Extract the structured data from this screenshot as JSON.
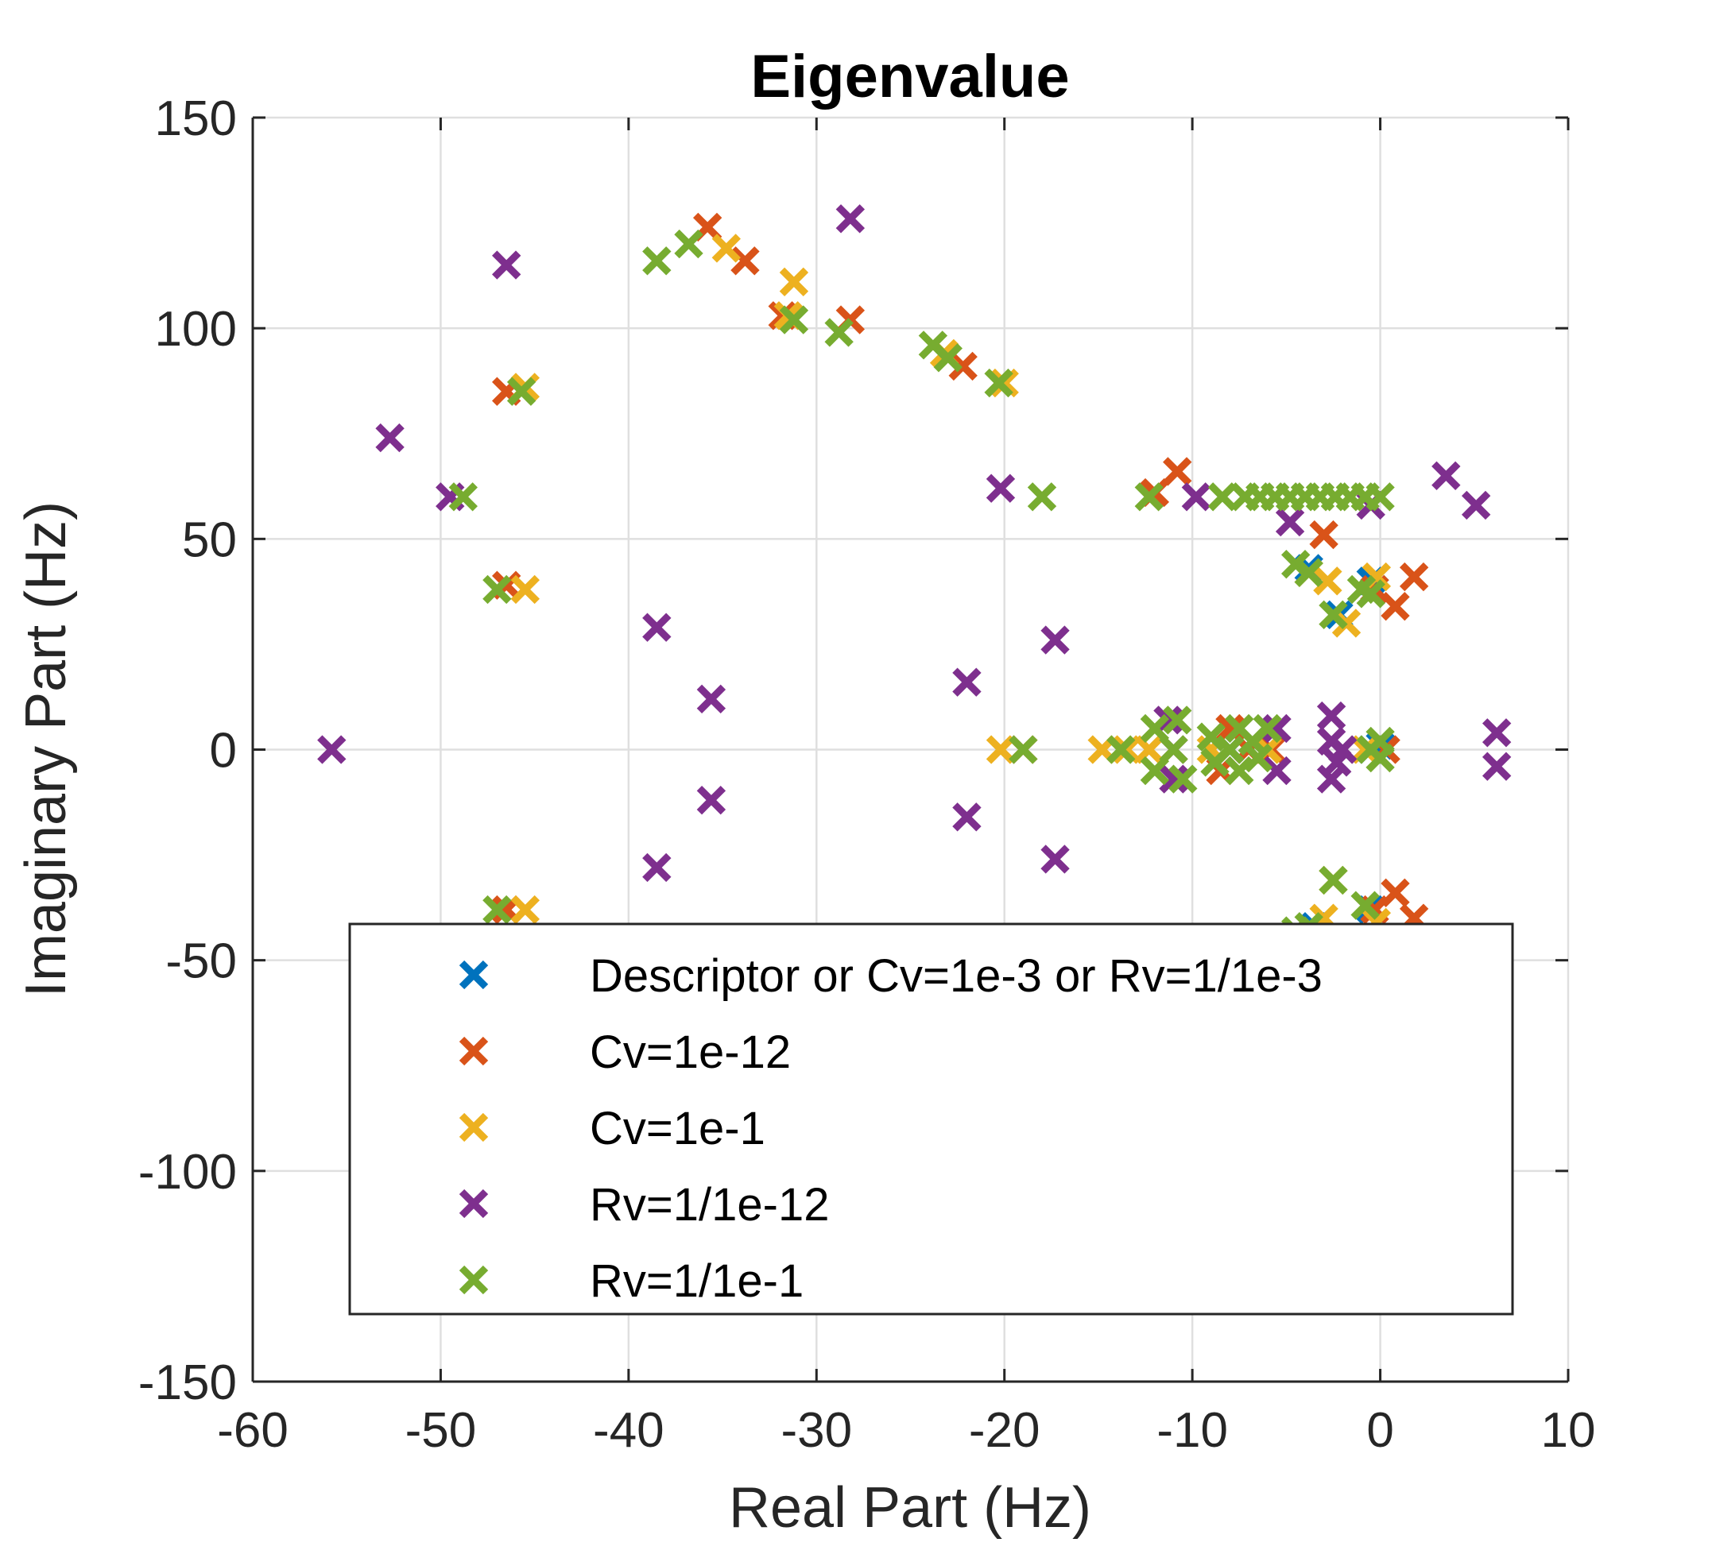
{
  "chart_data": {
    "type": "scatter",
    "title": "Eigenvalue",
    "xlabel": "Real Part (Hz)",
    "ylabel": "Imaginary Part (Hz)",
    "xlim": [
      -60,
      10
    ],
    "ylim": [
      -150,
      150
    ],
    "xticks": [
      -60,
      -50,
      -40,
      -30,
      -20,
      -10,
      0,
      10
    ],
    "yticks": [
      -150,
      -100,
      -50,
      0,
      50,
      100,
      150
    ],
    "xtick_labels": [
      "-60",
      "-50",
      "-40",
      "-30",
      "-20",
      "-10",
      "0",
      "10"
    ],
    "ytick_labels": [
      "-150",
      "-100",
      "-50",
      "0",
      "50",
      "100",
      "150"
    ],
    "grid": true,
    "legend_position": "bottom-center inside",
    "marker": "x",
    "series": [
      {
        "name": "Descriptor or Cv=1e-3 or Rv=1/1e-3",
        "color": "#0072BD",
        "points": [
          [
            -0.5,
            40
          ],
          [
            -0.3,
            38
          ],
          [
            -3.8,
            43
          ],
          [
            -2.2,
            32
          ],
          [
            -0.5,
            0
          ],
          [
            0.0,
            1
          ],
          [
            -0.5,
            -38
          ],
          [
            -3.5,
            -42
          ],
          [
            -8,
            0
          ],
          [
            -11,
            0
          ]
        ]
      },
      {
        "name": "Cv=1e-12",
        "color": "#D95319",
        "points": [
          [
            -35.8,
            124
          ],
          [
            -33.8,
            116
          ],
          [
            -31.8,
            103
          ],
          [
            -28.2,
            102
          ],
          [
            -22.2,
            91
          ],
          [
            -46.5,
            85
          ],
          [
            -46.5,
            39
          ],
          [
            -46.5,
            -38
          ],
          [
            -10.8,
            66
          ],
          [
            -12,
            61
          ],
          [
            -3,
            51
          ],
          [
            1.8,
            41
          ],
          [
            0.8,
            34
          ],
          [
            -0.3,
            38
          ],
          [
            -8,
            5
          ],
          [
            -8.5,
            -5
          ],
          [
            -7,
            0
          ],
          [
            -11,
            0
          ],
          [
            -5.8,
            0
          ],
          [
            0.3,
            0
          ],
          [
            -19,
            0
          ],
          [
            0.8,
            -34
          ],
          [
            1.8,
            -40
          ],
          [
            -0.3,
            -38
          ]
        ]
      },
      {
        "name": "Cv=1e-1",
        "color": "#EDB120",
        "points": [
          [
            -34.8,
            119
          ],
          [
            -31.2,
            111
          ],
          [
            -45.5,
            86
          ],
          [
            -45.5,
            38
          ],
          [
            -45.5,
            -38
          ],
          [
            -20,
            87
          ],
          [
            -31.5,
            103
          ],
          [
            -23.2,
            94
          ],
          [
            -3.8,
            42
          ],
          [
            -1.8,
            30
          ],
          [
            -0.2,
            41
          ],
          [
            -2.8,
            40
          ],
          [
            -20.2,
            0
          ],
          [
            -14.8,
            0
          ],
          [
            -13.5,
            0
          ],
          [
            -12.3,
            0
          ],
          [
            -9,
            0
          ],
          [
            -6,
            0
          ],
          [
            -0.8,
            0
          ],
          [
            -2.5,
            -31
          ],
          [
            -3,
            -40
          ],
          [
            -0.2,
            -41
          ]
        ]
      },
      {
        "name": "Rv=1/1e-12",
        "color": "#7E2F8E",
        "points": [
          [
            -46.5,
            115
          ],
          [
            -28.2,
            126
          ],
          [
            -52.7,
            74
          ],
          [
            -49.5,
            60
          ],
          [
            -20.2,
            62
          ],
          [
            -9.8,
            60
          ],
          [
            3.5,
            65
          ],
          [
            5.1,
            58
          ],
          [
            -4.8,
            54
          ],
          [
            -0.5,
            58
          ],
          [
            -38.5,
            29
          ],
          [
            -35.6,
            12
          ],
          [
            -22,
            16
          ],
          [
            -17.3,
            26
          ],
          [
            -55.8,
            0
          ],
          [
            -11.3,
            7
          ],
          [
            -11,
            -7
          ],
          [
            -5.5,
            5
          ],
          [
            -5.5,
            -5
          ],
          [
            -2.6,
            8
          ],
          [
            -2.6,
            -7
          ],
          [
            -2.6,
            2
          ],
          [
            -2.3,
            -3
          ],
          [
            -2,
            0
          ],
          [
            6.2,
            4
          ],
          [
            6.2,
            -4
          ],
          [
            -38.5,
            -28
          ],
          [
            -35.6,
            -12
          ],
          [
            -22,
            -16
          ],
          [
            -17.3,
            -26
          ]
        ]
      },
      {
        "name": "Rv=1/1e-1",
        "color": "#77AC30",
        "points": [
          [
            -38.5,
            116
          ],
          [
            -36.8,
            120
          ],
          [
            -31.2,
            102
          ],
          [
            -28.8,
            99
          ],
          [
            -23.8,
            96
          ],
          [
            -23,
            93
          ],
          [
            -20.3,
            87
          ],
          [
            -45.7,
            85
          ],
          [
            -48.8,
            60
          ],
          [
            -18,
            60
          ],
          [
            -12.3,
            60
          ],
          [
            -8.4,
            60
          ],
          [
            -7.2,
            60
          ],
          [
            -6.4,
            60
          ],
          [
            -5.6,
            60
          ],
          [
            -4.8,
            60
          ],
          [
            -4,
            60
          ],
          [
            -3.2,
            60
          ],
          [
            -2.4,
            60
          ],
          [
            -1.6,
            60
          ],
          [
            -0.8,
            60
          ],
          [
            0,
            60
          ],
          [
            -4.5,
            44
          ],
          [
            -3.8,
            42
          ],
          [
            -2.5,
            32
          ],
          [
            -1,
            38
          ],
          [
            -0.5,
            37
          ],
          [
            -47,
            38
          ],
          [
            -19,
            0
          ],
          [
            -13.8,
            0
          ],
          [
            -12,
            5
          ],
          [
            -12,
            -5
          ],
          [
            -11,
            0
          ],
          [
            -10.8,
            7
          ],
          [
            -10.5,
            -7
          ],
          [
            -9,
            3
          ],
          [
            -8.8,
            -3
          ],
          [
            -8,
            0
          ],
          [
            -7.5,
            5
          ],
          [
            -7.5,
            -5
          ],
          [
            -6.8,
            2
          ],
          [
            -6.5,
            -2
          ],
          [
            -6,
            5
          ],
          [
            -0.5,
            0
          ],
          [
            0,
            2
          ],
          [
            0,
            -2
          ],
          [
            -47,
            -38
          ],
          [
            -2.5,
            -31
          ],
          [
            -3.8,
            -42
          ],
          [
            -0.8,
            -37
          ],
          [
            -4.5,
            -43
          ]
        ]
      }
    ]
  }
}
